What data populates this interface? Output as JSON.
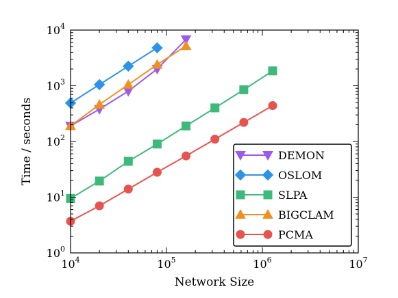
{
  "chart_data": {
    "type": "line",
    "xscale": "log",
    "yscale": "log",
    "xlabel": "Network Size",
    "ylabel": "Time / seconds",
    "xlim": [
      10000,
      10000000
    ],
    "ylim": [
      1,
      10000
    ],
    "legend_placement": "lower-right",
    "grid": false,
    "x_ticks": [
      {
        "value": 10000,
        "base": "10",
        "exp": "4"
      },
      {
        "value": 100000,
        "base": "10",
        "exp": "5"
      },
      {
        "value": 1000000,
        "base": "10",
        "exp": "6"
      },
      {
        "value": 10000000,
        "base": "10",
        "exp": "7"
      }
    ],
    "y_ticks": [
      {
        "value": 1,
        "base": "10",
        "exp": "0"
      },
      {
        "value": 10,
        "base": "10",
        "exp": "1"
      },
      {
        "value": 100,
        "base": "10",
        "exp": "2"
      },
      {
        "value": 1000,
        "base": "10",
        "exp": "3"
      },
      {
        "value": 10000,
        "base": "10",
        "exp": "4"
      }
    ],
    "series": [
      {
        "name": "DEMON",
        "color": "#9b59f0",
        "marker": "triangle-down",
        "x": [
          10000,
          20000,
          40000,
          80000,
          160000
        ],
        "y": [
          190,
          380,
          800,
          2000,
          6800
        ]
      },
      {
        "name": "OSLOM",
        "color": "#2b93e8",
        "marker": "diamond",
        "x": [
          10000,
          20000,
          40000,
          80000
        ],
        "y": [
          490,
          1050,
          2250,
          4800
        ]
      },
      {
        "name": "SLPA",
        "color": "#3dba79",
        "marker": "square",
        "x": [
          10000,
          20000,
          40000,
          80000,
          160000,
          320000,
          640000,
          1280000
        ],
        "y": [
          9.5,
          19.5,
          44,
          90,
          190,
          400,
          850,
          1850
        ]
      },
      {
        "name": "BIGCLAM",
        "color": "#f0911f",
        "marker": "triangle-up",
        "x": [
          10000,
          20000,
          40000,
          80000,
          160000
        ],
        "y": [
          190,
          460,
          1050,
          2400,
          5200
        ]
      },
      {
        "name": "PCMA",
        "color": "#e8534f",
        "marker": "circle",
        "x": [
          10000,
          20000,
          40000,
          80000,
          160000,
          320000,
          640000,
          1280000
        ],
        "y": [
          3.7,
          7,
          14,
          28,
          55,
          110,
          220,
          440
        ]
      }
    ]
  }
}
